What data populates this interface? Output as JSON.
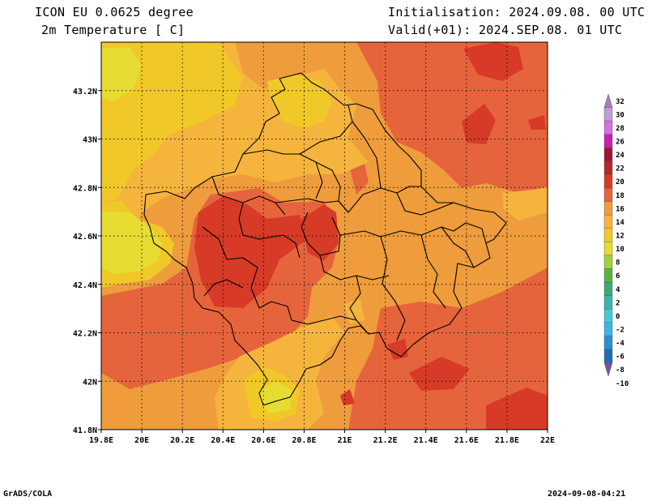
{
  "header": {
    "model": "ICON EU 0.0625 degree",
    "variable": "2m Temperature [ C]",
    "init": "Initialisation: 2024.09.08. 00 UTC",
    "valid": "Valid(+01): 2024.SEP.08. 01 UTC"
  },
  "footer": {
    "credit": "GrADS/COLA",
    "timestamp": "2024-09-08-04:21"
  },
  "map": {
    "lon_ticks": [
      "19.8E",
      "20E",
      "20.2E",
      "20.4E",
      "20.6E",
      "20.8E",
      "21E",
      "21.2E",
      "21.4E",
      "21.6E",
      "21.8E",
      "22E"
    ],
    "lat_ticks": [
      "41.8N",
      "42N",
      "42.2N",
      "42.4N",
      "42.6N",
      "42.8N",
      "43N",
      "43.2N"
    ],
    "lon_range": [
      19.8,
      22.0
    ],
    "lat_range": [
      41.8,
      43.4
    ],
    "grid": true,
    "shaded_field": "2m temperature",
    "colors": {
      "t10_12": "#e6dc32",
      "t12_14": "#f0c828",
      "t14_16": "#f5b43c",
      "t16_18": "#ee9c3c",
      "t18_20": "#e6643c",
      "t20_22": "#d73a26"
    }
  },
  "colorbar": {
    "labels": [
      "32",
      "30",
      "28",
      "26",
      "24",
      "22",
      "20",
      "18",
      "16",
      "14",
      "12",
      "10",
      "8",
      "6",
      "4",
      "2",
      "0",
      "-2",
      "-4",
      "-6",
      "-8",
      "-10"
    ],
    "colors": [
      "#a07ec8",
      "#c39bd3",
      "#d76ee0",
      "#c81eb4",
      "#a0143c",
      "#b42828",
      "#d73a26",
      "#e6643c",
      "#ee9c3c",
      "#f5b43c",
      "#f0c828",
      "#e6dc32",
      "#a0d23c",
      "#5ab43c",
      "#3caa78",
      "#3cb4aa",
      "#46c8dc",
      "#3cb4e6",
      "#2891d2",
      "#1e6eb4",
      "#7850a0"
    ]
  }
}
